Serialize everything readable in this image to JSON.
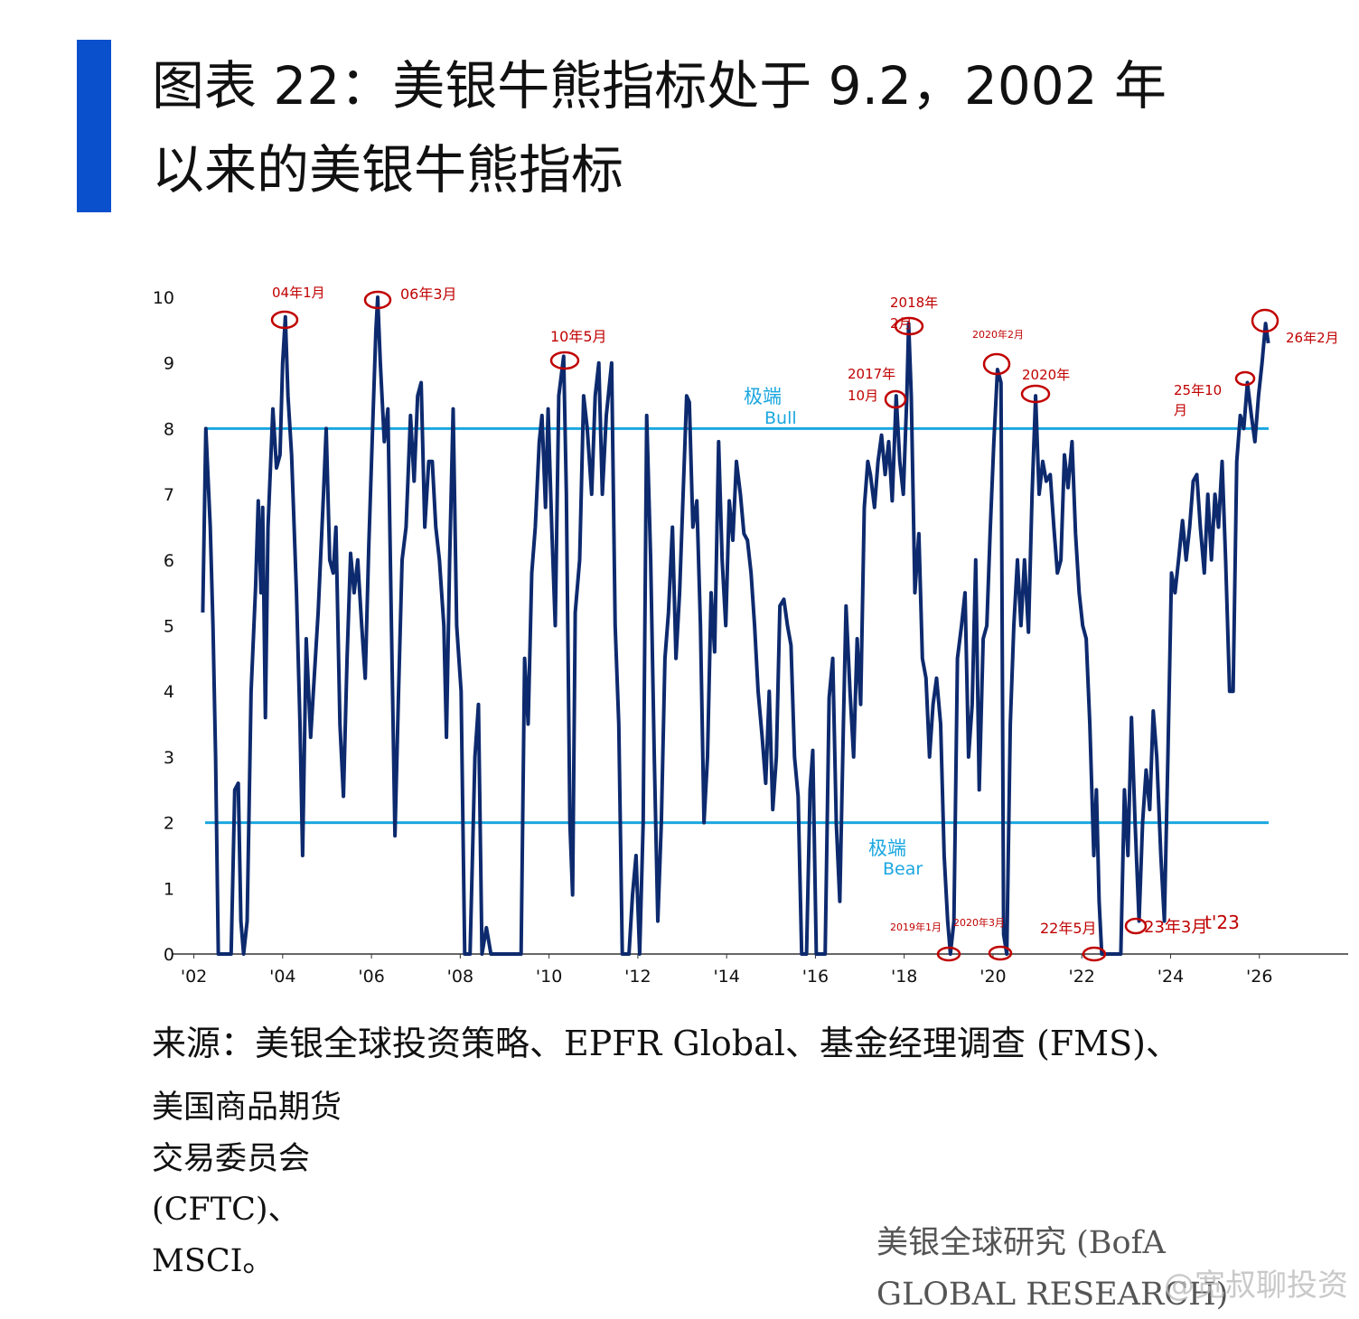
{
  "chart_data": {
    "type": "line",
    "title": [
      "图表 22：美银牛熊指标处于 9.2，2002 年",
      "以来的美银牛熊指标"
    ],
    "xlim": [
      2001.5,
      2028
    ],
    "xticks": [
      {
        "value": 2002,
        "label": "'02"
      },
      {
        "value": 2004,
        "label": "'04"
      },
      {
        "value": 2006,
        "label": "'06"
      },
      {
        "value": 2008,
        "label": "'08"
      },
      {
        "value": 2010,
        "label": "'10"
      },
      {
        "value": 2012,
        "label": "'12"
      },
      {
        "value": 2014,
        "label": "'14"
      },
      {
        "value": 2016,
        "label": "'16"
      },
      {
        "value": 2018,
        "label": "'18"
      },
      {
        "value": 2020,
        "label": "'20"
      },
      {
        "value": 2022,
        "label": "'22"
      },
      {
        "value": 2024,
        "label": "'24"
      },
      {
        "value": 2026,
        "label": "'26"
      }
    ],
    "ylim": [
      0,
      10
    ],
    "yticks": [
      0,
      1,
      2,
      3,
      4,
      5,
      6,
      7,
      8,
      9,
      10
    ],
    "series": [
      {
        "color": "#0d2a6e",
        "x": [
          2002.2,
          2002.27,
          2002.37,
          2002.43,
          2002.49,
          2002.55,
          2002.84,
          2002.92,
          2003.0,
          2003.06,
          2003.12,
          2003.2,
          2003.29,
          2003.39,
          2003.45,
          2003.51,
          2003.55,
          2003.61,
          2003.67,
          2003.78,
          2003.86,
          2003.94,
          2004.0,
          2004.06,
          2004.12,
          2004.2,
          2004.31,
          2004.39,
          2004.45,
          2004.53,
          2004.63,
          2004.71,
          2004.8,
          2004.92,
          2004.98,
          2005.06,
          2005.14,
          2005.2,
          2005.29,
          2005.37,
          2005.45,
          2005.53,
          2005.61,
          2005.69,
          2005.78,
          2005.86,
          2005.94,
          2006.02,
          2006.1,
          2006.14,
          2006.2,
          2006.29,
          2006.37,
          2006.45,
          2006.53,
          2006.61,
          2006.69,
          2006.78,
          2006.88,
          2006.96,
          2007.04,
          2007.12,
          2007.2,
          2007.29,
          2007.37,
          2007.45,
          2007.53,
          2007.63,
          2007.69,
          2007.76,
          2007.84,
          2007.92,
          2008.02,
          2008.1,
          2008.22,
          2008.33,
          2008.41,
          2008.49,
          2008.59,
          2008.69,
          2009.37,
          2009.45,
          2009.53,
          2009.61,
          2009.69,
          2009.78,
          2009.84,
          2009.92,
          2009.98,
          2010.06,
          2010.14,
          2010.22,
          2010.33,
          2010.39,
          2010.47,
          2010.53,
          2010.59,
          2010.69,
          2010.78,
          2010.86,
          2010.96,
          2011.04,
          2011.12,
          2011.2,
          2011.29,
          2011.41,
          2011.49,
          2011.57,
          2011.65,
          2011.8,
          2011.88,
          2011.96,
          2012.04,
          2012.12,
          2012.2,
          2012.29,
          2012.37,
          2012.45,
          2012.53,
          2012.61,
          2012.69,
          2012.78,
          2012.86,
          2012.94,
          2013.02,
          2013.1,
          2013.16,
          2013.24,
          2013.33,
          2013.41,
          2013.49,
          2013.57,
          2013.65,
          2013.73,
          2013.82,
          2013.9,
          2013.98,
          2014.06,
          2014.14,
          2014.22,
          2014.31,
          2014.39,
          2014.47,
          2014.55,
          2014.63,
          2014.71,
          2014.8,
          2014.88,
          2014.96,
          2015.04,
          2015.12,
          2015.2,
          2015.29,
          2015.37,
          2015.45,
          2015.53,
          2015.61,
          2015.69,
          2015.8,
          2015.88,
          2015.94,
          2016.02,
          2016.22,
          2016.31,
          2016.39,
          2016.47,
          2016.55,
          2016.63,
          2016.69,
          2016.78,
          2016.86,
          2016.94,
          2017.02,
          2017.1,
          2017.18,
          2017.24,
          2017.33,
          2017.41,
          2017.49,
          2017.57,
          2017.65,
          2017.73,
          2017.82,
          2017.9,
          2017.98,
          2018.06,
          2018.1,
          2018.16,
          2018.24,
          2018.33,
          2018.41,
          2018.49,
          2018.57,
          2018.65,
          2018.73,
          2018.82,
          2018.9,
          2018.98,
          2019.04,
          2019.12,
          2019.2,
          2019.29,
          2019.37,
          2019.45,
          2019.53,
          2019.61,
          2019.69,
          2019.78,
          2019.86,
          2019.94,
          2020.02,
          2020.1,
          2020.18,
          2020.24,
          2020.31,
          2020.39,
          2020.47,
          2020.55,
          2020.63,
          2020.71,
          2020.8,
          2020.88,
          2020.96,
          2021.04,
          2021.12,
          2021.2,
          2021.29,
          2021.37,
          2021.45,
          2021.53,
          2021.61,
          2021.69,
          2021.78,
          2021.86,
          2021.94,
          2022.02,
          2022.1,
          2022.18,
          2022.27,
          2022.33,
          2022.39,
          2022.45,
          2022.88,
          2022.96,
          2023.04,
          2023.12,
          2023.2,
          2023.29,
          2023.37,
          2023.45,
          2023.53,
          2023.61,
          2023.69,
          2023.78,
          2023.86,
          2023.94,
          2024.02,
          2024.1,
          2024.18,
          2024.27,
          2024.35,
          2024.43,
          2024.51,
          2024.59,
          2024.67,
          2024.76,
          2024.84,
          2024.92,
          2025.0,
          2025.08,
          2025.16,
          2025.24,
          2025.33,
          2025.41,
          2025.49,
          2025.57,
          2025.65,
          2025.73,
          2025.82,
          2025.9,
          2025.98,
          2026.06,
          2026.14,
          2026.2
        ],
        "values": [
          5.2,
          8.0,
          6.5,
          5.0,
          3.0,
          0,
          0,
          2.5,
          2.6,
          0.5,
          0,
          0.5,
          4.0,
          5.6,
          6.9,
          5.5,
          6.8,
          3.6,
          6.5,
          8.3,
          7.4,
          7.6,
          9.0,
          9.7,
          8.5,
          7.6,
          5.5,
          3.5,
          1.5,
          4.8,
          3.3,
          4.2,
          5.2,
          7.0,
          8.0,
          6.0,
          5.8,
          6.5,
          3.5,
          2.4,
          4.5,
          6.1,
          5.5,
          6.0,
          5.0,
          4.2,
          6.2,
          7.9,
          9.5,
          10.0,
          9.0,
          7.8,
          8.3,
          5.0,
          1.8,
          4.0,
          6.0,
          6.5,
          8.2,
          7.2,
          8.5,
          8.7,
          6.5,
          7.5,
          7.5,
          6.5,
          6.0,
          5.0,
          3.3,
          6.0,
          8.3,
          5.0,
          4.0,
          0,
          0,
          3.0,
          3.8,
          0,
          0.4,
          0,
          0,
          4.5,
          3.5,
          5.8,
          6.5,
          7.8,
          8.2,
          6.8,
          8.3,
          6.5,
          5.0,
          8.5,
          9.1,
          7.0,
          2.0,
          0.9,
          5.2,
          6.0,
          8.5,
          8.0,
          7.0,
          8.5,
          9.0,
          7.0,
          8.2,
          9.0,
          5.0,
          3.5,
          0,
          0,
          0.9,
          1.5,
          0,
          2.0,
          8.2,
          6.0,
          3.0,
          0.5,
          2.0,
          4.5,
          5.2,
          6.5,
          4.5,
          5.5,
          7.0,
          8.5,
          8.4,
          6.5,
          6.9,
          5.0,
          2.0,
          3.0,
          5.5,
          4.6,
          7.8,
          6.0,
          5.0,
          6.9,
          6.3,
          7.5,
          7.0,
          6.4,
          6.3,
          5.8,
          5.0,
          4.0,
          3.3,
          2.6,
          4.0,
          2.2,
          3.0,
          5.3,
          5.4,
          5.0,
          4.7,
          3.0,
          2.4,
          0,
          0,
          2.5,
          3.1,
          0,
          0,
          3.9,
          4.5,
          2.0,
          0.8,
          3.5,
          5.3,
          4.0,
          3.0,
          4.8,
          3.8,
          6.8,
          7.5,
          7.3,
          6.8,
          7.5,
          7.9,
          7.3,
          7.8,
          6.9,
          8.5,
          7.5,
          7.0,
          8.5,
          9.6,
          8.5,
          5.5,
          6.4,
          4.5,
          4.2,
          3.0,
          3.8,
          4.2,
          3.5,
          1.5,
          0.5,
          0,
          0.5,
          4.5,
          5.0,
          5.5,
          3.0,
          3.8,
          6.0,
          2.5,
          4.8,
          5.0,
          6.5,
          7.8,
          8.9,
          8.7,
          0.3,
          0,
          3.5,
          5.0,
          6.0,
          5.0,
          6.0,
          4.9,
          7.0,
          8.5,
          7.0,
          7.5,
          7.2,
          7.3,
          6.5,
          5.8,
          6.0,
          7.6,
          7.1,
          7.8,
          6.4,
          5.5,
          5.0,
          4.8,
          3.5,
          1.5,
          2.5,
          0.8,
          0,
          0,
          2.5,
          1.5,
          3.6,
          2.0,
          0.5,
          2.0,
          2.8,
          2.2,
          3.7,
          3.0,
          1.5,
          0.5,
          3.0,
          5.8,
          5.5,
          6.0,
          6.6,
          6.0,
          6.5,
          7.2,
          7.3,
          6.5,
          5.8,
          7.0,
          6.0,
          7.0,
          6.5,
          7.5,
          6.0,
          4.0,
          4.0,
          7.5,
          8.2,
          8.0,
          8.7,
          8.2,
          7.8,
          8.5,
          9.0,
          9.6,
          9.3
        ]
      }
    ],
    "reference_lines": [
      {
        "value": 8,
        "label": "极端",
        "sublabel": "Bull",
        "color": "#1ba7e0"
      },
      {
        "value": 2,
        "label": "极端",
        "sublabel": "Bear",
        "color": "#1ba7e0"
      }
    ],
    "annotations": [
      {
        "lines": [
          "04年1月"
        ]
      },
      {
        "lines": [
          "06年3月"
        ]
      },
      {
        "lines": [
          "10年5月"
        ]
      },
      {
        "lines": [
          "2017年",
          "10月"
        ]
      },
      {
        "lines": [
          "2018年",
          "2月"
        ]
      },
      {
        "lines": [
          "2020年2月"
        ]
      },
      {
        "lines": [
          "2020年"
        ]
      },
      {
        "lines": [
          "25年10",
          "月"
        ]
      },
      {
        "lines": [
          "26年2月"
        ]
      },
      {
        "lines": [
          "2019年1月"
        ]
      },
      {
        "lines": [
          "2020年3月"
        ]
      },
      {
        "lines": [
          "22年5月"
        ]
      },
      {
        "lines": [
          "23年3月"
        ]
      },
      {
        "lines": [
          "t'23"
        ]
      }
    ],
    "source": [
      "来源：美银全球投资策略、EPFR Global、基金经理调查 (FMS)、",
      "美国商品期货",
      "交易委员会",
      "(CFTC)、",
      "MSCI。"
    ],
    "credit": [
      "美银全球研究 (BofA",
      "GLOBAL RESEARCH)"
    ],
    "watermark": "@宽叔聊投资"
  }
}
